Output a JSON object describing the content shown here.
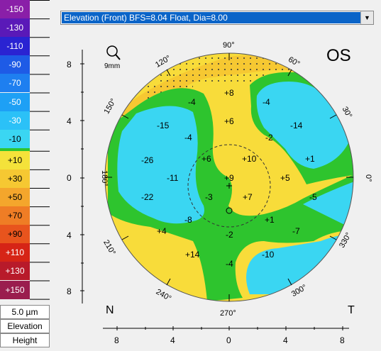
{
  "scale": {
    "items": [
      {
        "label": "-150",
        "color": "#8a1fa8",
        "dark": false
      },
      {
        "label": "-130",
        "color": "#5a19b8",
        "dark": false
      },
      {
        "label": "-110",
        "color": "#2a23d2",
        "dark": false
      },
      {
        "label": "-90",
        "color": "#1e5be6",
        "dark": false
      },
      {
        "label": "-70",
        "color": "#1e7ff0",
        "dark": false
      },
      {
        "label": "-50",
        "color": "#1ea0f5",
        "dark": false
      },
      {
        "label": "-30",
        "color": "#2bc1f7",
        "dark": false
      },
      {
        "label": "-10",
        "color": "#3ad6f2",
        "dark": true
      },
      {
        "label": "+10",
        "color": "#f4e23a",
        "dark": true
      },
      {
        "label": "+30",
        "color": "#f6c832",
        "dark": true
      },
      {
        "label": "+50",
        "color": "#f4a62c",
        "dark": true
      },
      {
        "label": "+70",
        "color": "#ef7d25",
        "dark": true
      },
      {
        "label": "+90",
        "color": "#e8541d",
        "dark": true
      },
      {
        "label": "+110",
        "color": "#d62416",
        "dark": false
      },
      {
        "label": "+130",
        "color": "#b81a2a",
        "dark": false
      },
      {
        "label": "+150",
        "color": "#9a1d4e",
        "dark": false
      }
    ],
    "green_band_color": "#2ec42e",
    "step_label": "5.0 µm",
    "type_label": "Elevation",
    "mode_label": "Height"
  },
  "dropdown": {
    "value": "Elevation (Front)  BFS=8.04 Float, Dia=8.00"
  },
  "map": {
    "eye": "OS",
    "zoom_icon": "magnifier-icon",
    "zoom_label": "9mm",
    "nasal": "N",
    "temporal": "T",
    "y_axis_labels": [
      "8",
      "4",
      "0",
      "4",
      "8"
    ],
    "x_axis_labels": [
      "8",
      "4",
      "0",
      "4",
      "8"
    ],
    "angle_labels": {
      "a90": "90°",
      "a60": "60°",
      "a30": "30°",
      "a0": "0°",
      "a330": "330°",
      "a300": "300°",
      "a270": "270°",
      "a240": "240°",
      "a210": "210°",
      "a180": "180°",
      "a150": "150°",
      "a120": "120°"
    },
    "values": {
      "v1": "+8",
      "v2": "-4",
      "v3": "-4",
      "v4": "+6",
      "v5": "-15",
      "v6": "-14",
      "v7": "-4",
      "v8": "-2",
      "v9": "-26",
      "v10": "+6",
      "v11": "+10",
      "v12": "+1",
      "v13": "-11",
      "v14": "+9",
      "v15": "+5",
      "v16": "-22",
      "v17": "-3",
      "v18": "+7",
      "v19": "-5",
      "v20": "-8",
      "v21": "+1",
      "v22": "+4",
      "v23": "-2",
      "v24": "-7",
      "v25": "+14",
      "v26": "-10",
      "v27": "-4"
    },
    "colors": {
      "yellow": "#f8dc3a",
      "cyan": "#3ad6f2",
      "green": "#2ec42e",
      "orange": "#f6c832"
    }
  }
}
